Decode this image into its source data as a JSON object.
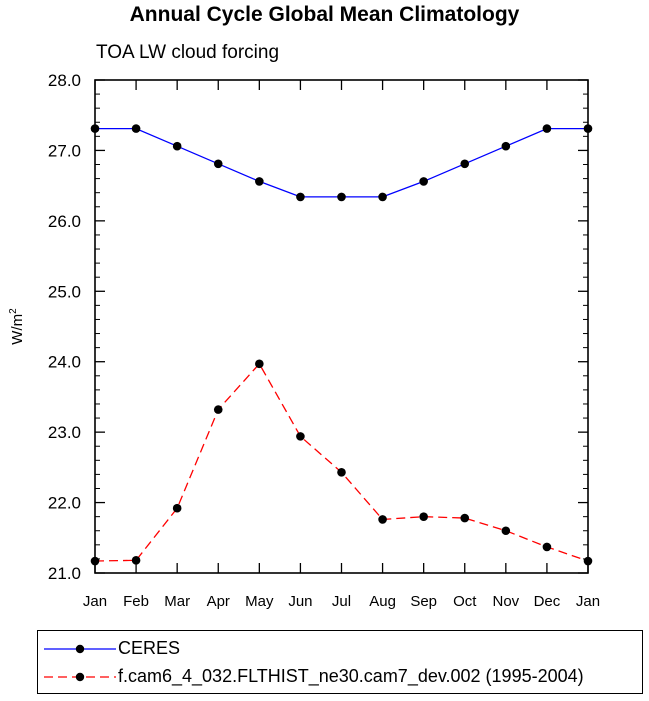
{
  "chart_data": {
    "type": "line",
    "title": "Annual Cycle Global Mean Climatology",
    "subtitle": "TOA LW cloud forcing",
    "xlabel": "",
    "ylabel": "W/m",
    "ylabel_sup": "2",
    "categories": [
      "Jan",
      "Feb",
      "Mar",
      "Apr",
      "May",
      "Jun",
      "Jul",
      "Aug",
      "Sep",
      "Oct",
      "Nov",
      "Dec",
      "Jan"
    ],
    "ylim": [
      21.0,
      28.0
    ],
    "yticks": [
      "21.0",
      "22.0",
      "23.0",
      "24.0",
      "25.0",
      "26.0",
      "27.0",
      "28.0"
    ],
    "series": [
      {
        "name": "CERES",
        "color": "#0000ff",
        "dash": "solid",
        "values": [
          27.31,
          27.31,
          27.06,
          26.81,
          26.56,
          26.34,
          26.34,
          26.34,
          26.56,
          26.81,
          27.06,
          27.31,
          27.31
        ]
      },
      {
        "name": "f.cam6_4_032.FLTHIST_ne30.cam7_dev.002 (1995-2004)",
        "color": "#ff0000",
        "dash": "dashed",
        "values": [
          21.17,
          21.18,
          21.92,
          23.32,
          23.97,
          22.94,
          22.43,
          21.76,
          21.8,
          21.78,
          21.6,
          21.37,
          21.17
        ]
      }
    ]
  }
}
